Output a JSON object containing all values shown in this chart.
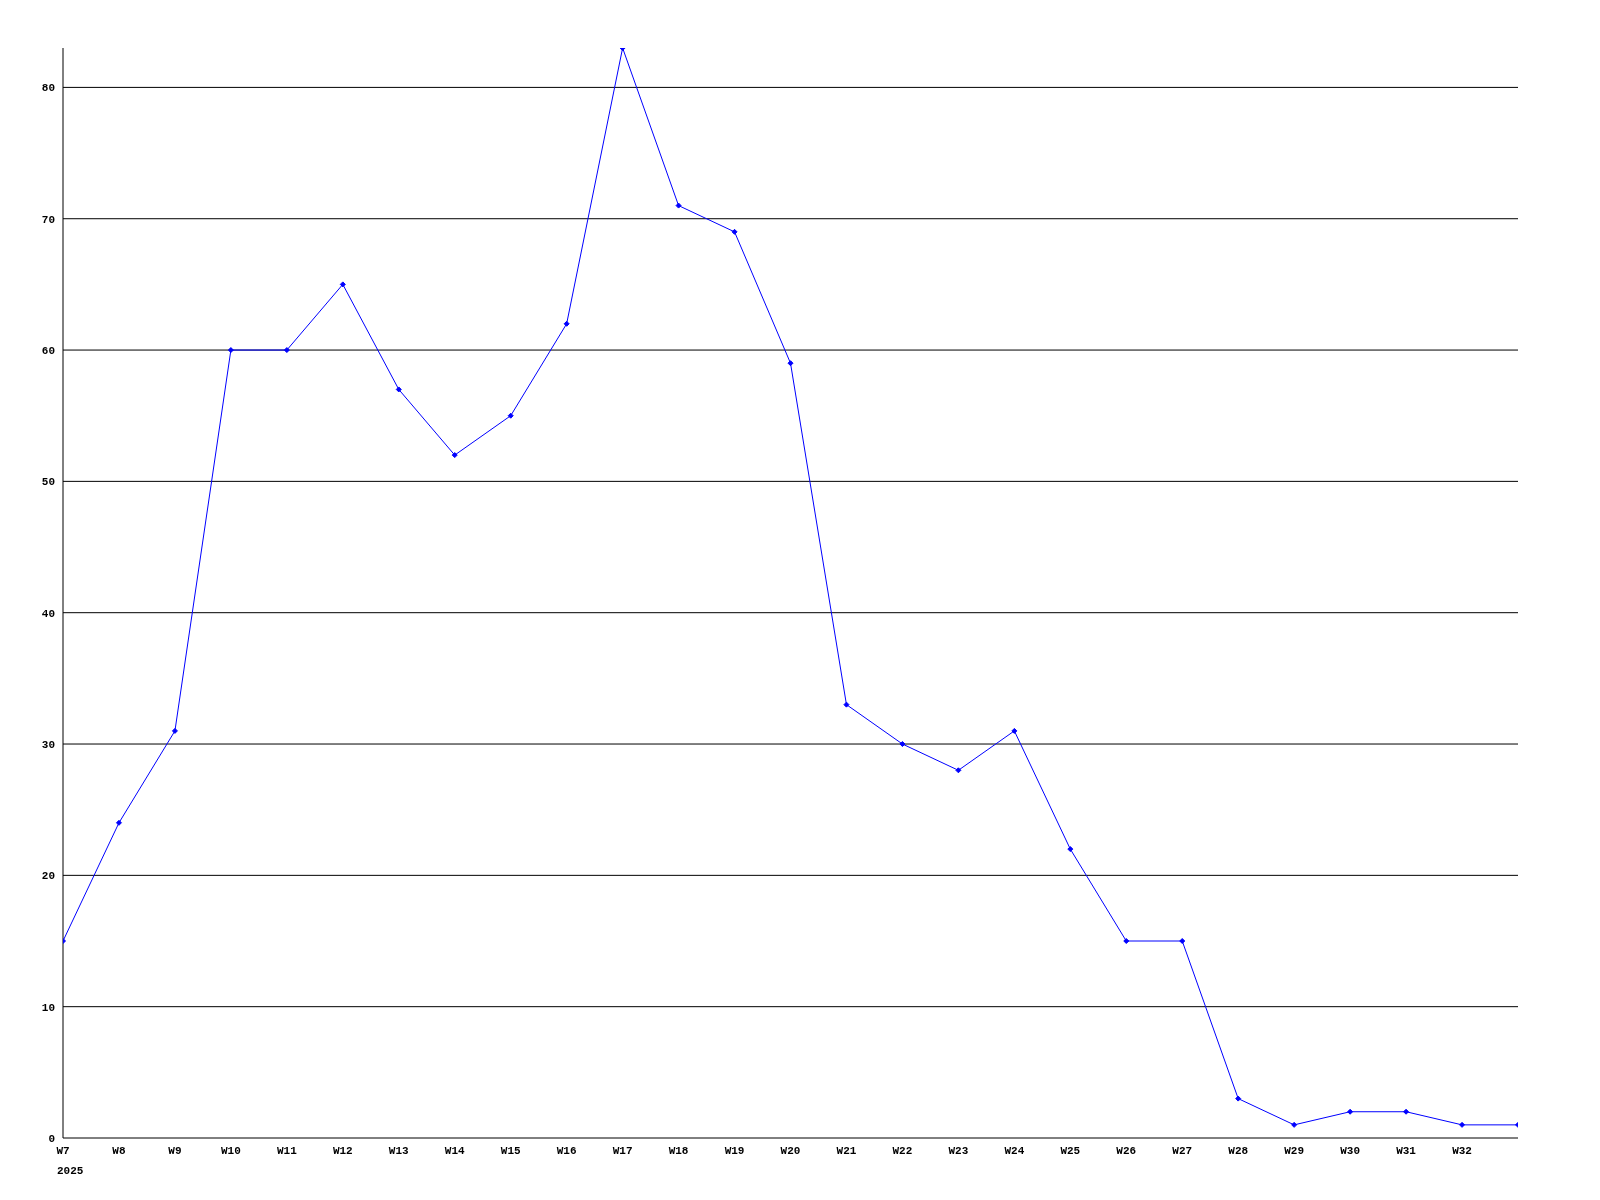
{
  "chart_data": {
    "type": "line",
    "xlabel": "2025",
    "categories": [
      "W7",
      "W8",
      "W9",
      "W10",
      "W11",
      "W12",
      "W13",
      "W14",
      "W15",
      "W16",
      "W17",
      "W18",
      "W19",
      "W20",
      "W21",
      "W22",
      "W23",
      "W24",
      "W25",
      "W26",
      "W27",
      "W28",
      "W29",
      "W30",
      "W31",
      "W32",
      null
    ],
    "series": [
      {
        "color": "#0000ff",
        "values": [
          15,
          24,
          31,
          60,
          60,
          65,
          57,
          52,
          55,
          62,
          83,
          71,
          69,
          59,
          33,
          30,
          28,
          31,
          22,
          15,
          15,
          3,
          1,
          2,
          2,
          1,
          1
        ]
      }
    ],
    "ylim": [
      0,
      83
    ],
    "yticks": [
      0,
      10,
      20,
      30,
      40,
      50,
      60,
      70,
      80
    ],
    "grid": "y",
    "legend": false,
    "marker": "diamond",
    "line_style": "solid"
  }
}
